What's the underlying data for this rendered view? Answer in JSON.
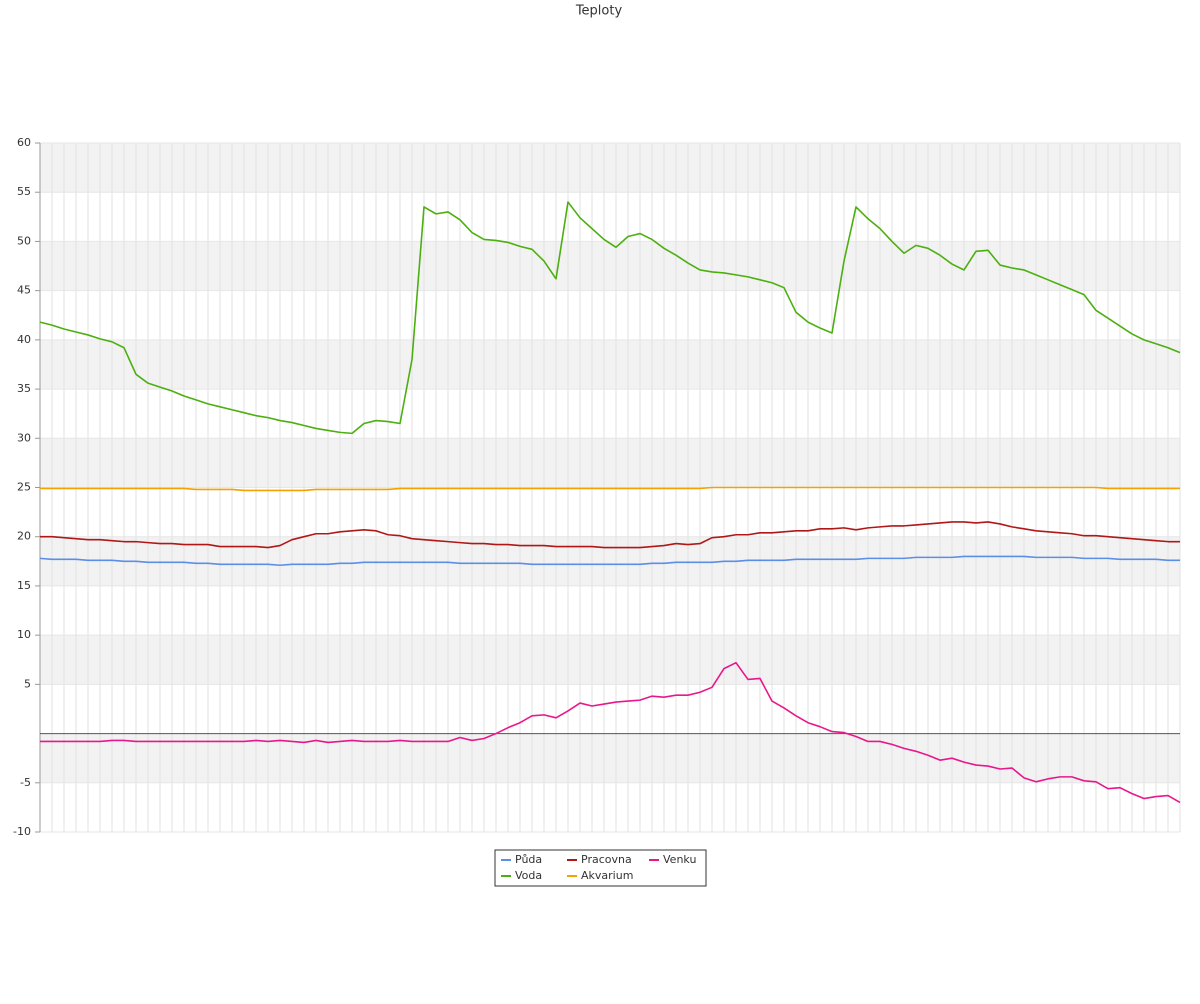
{
  "chart_data": {
    "type": "line",
    "title": "Teploty",
    "categories": [
      null,
      null,
      null,
      null,
      null,
      null,
      null,
      null,
      null,
      null,
      null,
      null,
      null,
      null,
      null,
      null,
      null,
      null,
      null,
      null,
      null,
      null,
      null,
      null,
      null,
      null,
      null,
      null,
      null,
      null,
      null,
      null,
      null,
      null,
      null,
      null,
      null,
      null,
      null,
      null,
      null,
      null,
      null,
      null,
      null,
      null,
      null,
      null,
      null,
      null,
      null,
      null,
      null,
      null,
      null,
      null,
      null,
      null,
      null,
      null,
      null,
      null,
      null,
      null,
      null,
      null,
      null,
      null,
      null,
      null,
      null,
      null,
      null,
      null,
      null,
      null,
      null,
      null,
      null,
      null,
      null,
      null,
      null,
      null,
      null,
      null,
      null,
      null,
      null,
      null,
      null,
      null,
      null,
      null,
      null,
      null
    ],
    "ylim": [
      -10,
      60
    ],
    "yticks": [
      60,
      55,
      50,
      45,
      40,
      35,
      30,
      25,
      20,
      15,
      10,
      5,
      -5,
      -10
    ],
    "grid": true,
    "series": [
      {
        "name": "Půda",
        "color": "#5b8ee6",
        "values": [
          17.8,
          17.7,
          17.7,
          17.7,
          17.6,
          17.6,
          17.6,
          17.5,
          17.5,
          17.4,
          17.4,
          17.4,
          17.4,
          17.3,
          17.3,
          17.2,
          17.2,
          17.2,
          17.2,
          17.2,
          17.1,
          17.2,
          17.2,
          17.2,
          17.2,
          17.3,
          17.3,
          17.4,
          17.4,
          17.4,
          17.4,
          17.4,
          17.4,
          17.4,
          17.4,
          17.3,
          17.3,
          17.3,
          17.3,
          17.3,
          17.3,
          17.2,
          17.2,
          17.2,
          17.2,
          17.2,
          17.2,
          17.2,
          17.2,
          17.2,
          17.2,
          17.3,
          17.3,
          17.4,
          17.4,
          17.4,
          17.4,
          17.5,
          17.5,
          17.6,
          17.6,
          17.6,
          17.6,
          17.7,
          17.7,
          17.7,
          17.7,
          17.7,
          17.7,
          17.8,
          17.8,
          17.8,
          17.8,
          17.9,
          17.9,
          17.9,
          17.9,
          18.0,
          18.0,
          18.0,
          18.0,
          18.0,
          18.0,
          17.9,
          17.9,
          17.9,
          17.9,
          17.8,
          17.8,
          17.8,
          17.7,
          17.7,
          17.7,
          17.7,
          17.6,
          17.6
        ]
      },
      {
        "name": "Pracovna",
        "color": "#b01818",
        "values": [
          20.0,
          20.0,
          19.9,
          19.8,
          19.7,
          19.7,
          19.6,
          19.5,
          19.5,
          19.4,
          19.3,
          19.3,
          19.2,
          19.2,
          19.2,
          19.0,
          19.0,
          19.0,
          19.0,
          18.9,
          19.1,
          19.7,
          20.0,
          20.3,
          20.3,
          20.5,
          20.6,
          20.7,
          20.6,
          20.2,
          20.1,
          19.8,
          19.7,
          19.6,
          19.5,
          19.4,
          19.3,
          19.3,
          19.2,
          19.2,
          19.1,
          19.1,
          19.1,
          19.0,
          19.0,
          19.0,
          19.0,
          18.9,
          18.9,
          18.9,
          18.9,
          19.0,
          19.1,
          19.3,
          19.2,
          19.3,
          19.9,
          20.0,
          20.2,
          20.2,
          20.4,
          20.4,
          20.5,
          20.6,
          20.6,
          20.8,
          20.8,
          20.9,
          20.7,
          20.9,
          21.0,
          21.1,
          21.1,
          21.2,
          21.3,
          21.4,
          21.5,
          21.5,
          21.4,
          21.5,
          21.3,
          21.0,
          20.8,
          20.6,
          20.5,
          20.4,
          20.3,
          20.1,
          20.1,
          20.0,
          19.9,
          19.8,
          19.7,
          19.6,
          19.5,
          19.5
        ]
      },
      {
        "name": "Venku",
        "color": "#e8188c",
        "values": [
          -0.8,
          -0.8,
          -0.8,
          -0.8,
          -0.8,
          -0.8,
          -0.7,
          -0.7,
          -0.8,
          -0.8,
          -0.8,
          -0.8,
          -0.8,
          -0.8,
          -0.8,
          -0.8,
          -0.8,
          -0.8,
          -0.7,
          -0.8,
          -0.7,
          -0.8,
          -0.9,
          -0.7,
          -0.9,
          -0.8,
          -0.7,
          -0.8,
          -0.8,
          -0.8,
          -0.7,
          -0.8,
          -0.8,
          -0.8,
          -0.8,
          -0.4,
          -0.7,
          -0.5,
          0.0,
          0.6,
          1.1,
          1.8,
          1.9,
          1.6,
          2.3,
          3.1,
          2.8,
          3.0,
          3.2,
          3.3,
          3.4,
          3.8,
          3.7,
          3.9,
          3.9,
          4.2,
          4.7,
          6.6,
          7.2,
          5.5,
          5.6,
          3.3,
          2.6,
          1.8,
          1.1,
          0.7,
          0.2,
          0.1,
          -0.3,
          -0.8,
          -0.8,
          -1.1,
          -1.5,
          -1.8,
          -2.2,
          -2.7,
          -2.5,
          -2.9,
          -3.2,
          -3.3,
          -3.6,
          -3.5,
          -4.5,
          -4.9,
          -4.6,
          -4.4,
          -4.4,
          -4.8,
          -4.9,
          -5.6,
          -5.5,
          -6.1,
          -6.6,
          -6.4,
          -6.3,
          -7.0
        ]
      },
      {
        "name": "Voda",
        "color": "#4caf10",
        "values": [
          41.8,
          41.5,
          41.1,
          40.8,
          40.5,
          40.1,
          39.8,
          39.2,
          36.5,
          35.6,
          35.2,
          34.8,
          34.3,
          33.9,
          33.5,
          33.2,
          32.9,
          32.6,
          32.3,
          32.1,
          31.8,
          31.6,
          31.3,
          31.0,
          30.8,
          30.6,
          30.5,
          31.5,
          31.8,
          31.7,
          31.5,
          38.0,
          53.5,
          52.8,
          53.0,
          52.2,
          50.9,
          50.2,
          50.1,
          49.9,
          49.5,
          49.2,
          48.0,
          46.2,
          54.0,
          52.4,
          51.3,
          50.2,
          49.4,
          50.5,
          50.8,
          50.2,
          49.3,
          48.6,
          47.8,
          47.1,
          46.9,
          46.8,
          46.6,
          46.4,
          46.1,
          45.8,
          45.3,
          42.8,
          41.8,
          41.2,
          40.7,
          48.0,
          53.5,
          52.3,
          51.3,
          50.0,
          48.8,
          49.6,
          49.3,
          48.6,
          47.7,
          47.1,
          49.0,
          49.1,
          47.6,
          47.3,
          47.1,
          46.6,
          46.1,
          45.6,
          45.1,
          44.6,
          43.0,
          42.2,
          41.4,
          40.6,
          40.0,
          39.6,
          39.2,
          38.7
        ]
      },
      {
        "name": "Akvarium",
        "color": "#f5a200",
        "values": [
          24.9,
          24.9,
          24.9,
          24.9,
          24.9,
          24.9,
          24.9,
          24.9,
          24.9,
          24.9,
          24.9,
          24.9,
          24.9,
          24.8,
          24.8,
          24.8,
          24.8,
          24.7,
          24.7,
          24.7,
          24.7,
          24.7,
          24.7,
          24.8,
          24.8,
          24.8,
          24.8,
          24.8,
          24.8,
          24.8,
          24.9,
          24.9,
          24.9,
          24.9,
          24.9,
          24.9,
          24.9,
          24.9,
          24.9,
          24.9,
          24.9,
          24.9,
          24.9,
          24.9,
          24.9,
          24.9,
          24.9,
          24.9,
          24.9,
          24.9,
          24.9,
          24.9,
          24.9,
          24.9,
          24.9,
          24.9,
          25.0,
          25.0,
          25.0,
          25.0,
          25.0,
          25.0,
          25.0,
          25.0,
          25.0,
          25.0,
          25.0,
          25.0,
          25.0,
          25.0,
          25.0,
          25.0,
          25.0,
          25.0,
          25.0,
          25.0,
          25.0,
          25.0,
          25.0,
          25.0,
          25.0,
          25.0,
          25.0,
          25.0,
          25.0,
          25.0,
          25.0,
          25.0,
          25.0,
          24.9,
          24.9,
          24.9,
          24.9,
          24.9,
          24.9,
          24.9
        ]
      }
    ]
  }
}
